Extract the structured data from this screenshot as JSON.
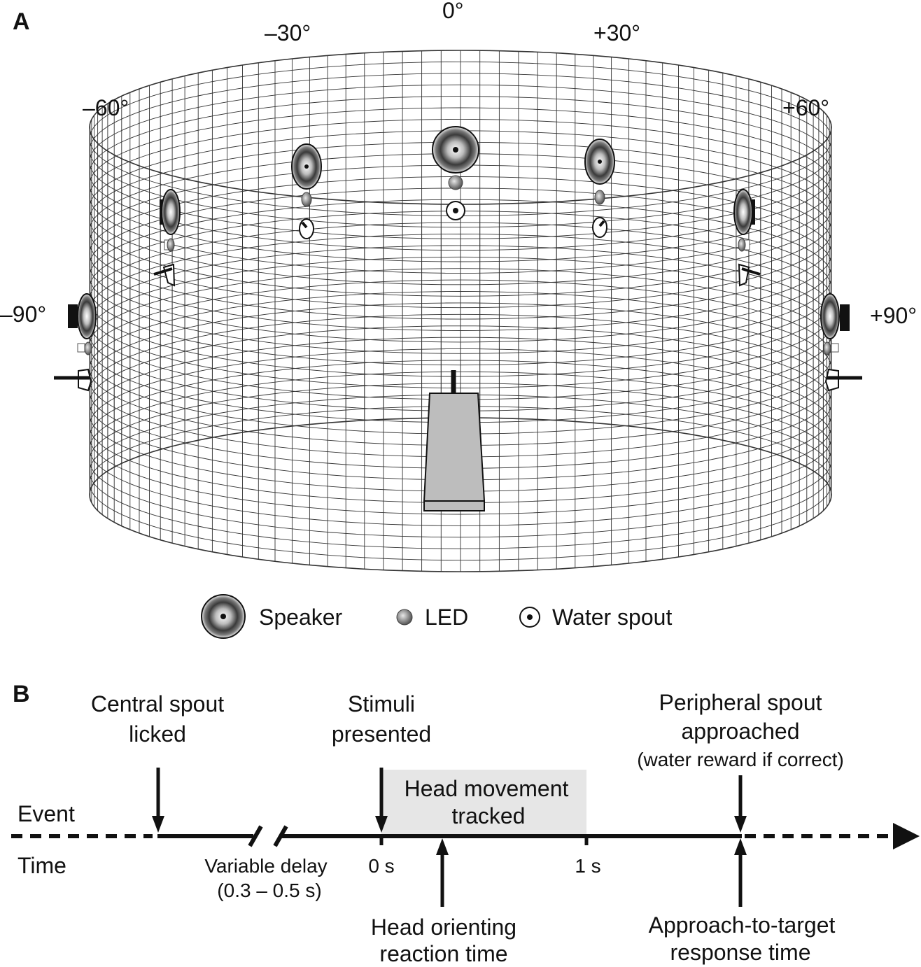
{
  "panel_a": {
    "letter": "A",
    "angles": {
      "n90": "–90°",
      "n60": "–60°",
      "n30": "–30°",
      "zero": "0°",
      "p30": "+30°",
      "p60": "+60°",
      "p90": "+90°"
    },
    "legend": {
      "speaker": "Speaker",
      "led": "LED",
      "spout": "Water spout"
    }
  },
  "panel_b": {
    "letter": "B",
    "row_event": "Event",
    "row_time": "Time",
    "central_spout": [
      "Central spout",
      "licked"
    ],
    "stimuli": [
      "Stimuli",
      "presented"
    ],
    "peripheral": [
      "Peripheral spout",
      "approached",
      "(water reward if correct)"
    ],
    "head_tracked": [
      "Head movement",
      "tracked"
    ],
    "variable_delay": [
      "Variable delay",
      "(0.3 – 0.5 s)"
    ],
    "tick_0": "0 s",
    "tick_1": "1 s",
    "head_rt": [
      "Head orienting",
      "reaction time"
    ],
    "approach_rt": [
      "Approach-to-target",
      "response time"
    ]
  }
}
